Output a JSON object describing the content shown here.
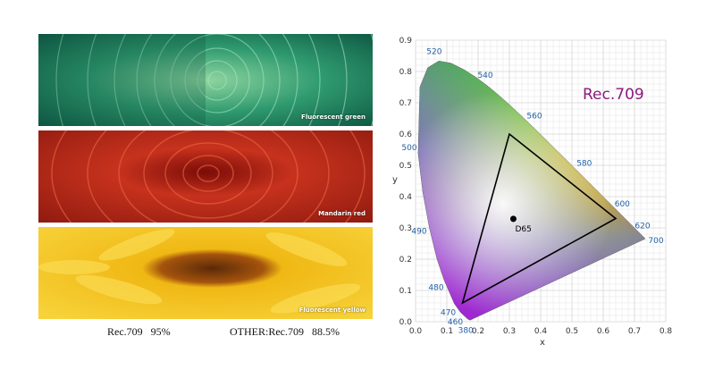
{
  "photos": [
    {
      "label": "Fluorescent green",
      "color": "#1f8a6a"
    },
    {
      "label": "Mandarin red",
      "color": "#c2321e"
    },
    {
      "label": "Fluorescent yellow",
      "color": "#f3c51a"
    }
  ],
  "coverage": {
    "rec709": "Rec.709   95%",
    "other": "OTHER:Rec.709   88.5%"
  },
  "chart_data": {
    "type": "scatter",
    "title": "Rec.709",
    "xlabel": "x",
    "ylabel": "y",
    "xlim": [
      0.0,
      0.8
    ],
    "ylim": [
      0.0,
      0.9
    ],
    "grid": true,
    "x_ticks": [
      "0.0",
      "0.1",
      "0.2",
      "0.3",
      "0.4",
      "0.5",
      "0.6",
      "0.7",
      "0.8"
    ],
    "y_ticks": [
      "0.0",
      "0.1",
      "0.2",
      "0.3",
      "0.4",
      "0.5",
      "0.6",
      "0.7",
      "0.8",
      "0.9"
    ],
    "spectral_locus": [
      [
        0.1741,
        0.005
      ],
      [
        0.1666,
        0.0089
      ],
      [
        0.144,
        0.0297
      ],
      [
        0.1241,
        0.0578
      ],
      [
        0.0913,
        0.1327
      ],
      [
        0.0687,
        0.2007
      ],
      [
        0.0454,
        0.295
      ],
      [
        0.0235,
        0.4127
      ],
      [
        0.0082,
        0.5384
      ],
      [
        0.0139,
        0.7502
      ],
      [
        0.0389,
        0.812
      ],
      [
        0.0743,
        0.8338
      ],
      [
        0.1142,
        0.8262
      ],
      [
        0.1547,
        0.8059
      ],
      [
        0.1929,
        0.7816
      ],
      [
        0.2296,
        0.7543
      ],
      [
        0.2658,
        0.7243
      ],
      [
        0.3016,
        0.6923
      ],
      [
        0.3373,
        0.6589
      ],
      [
        0.3731,
        0.6245
      ],
      [
        0.4087,
        0.5896
      ],
      [
        0.4441,
        0.5547
      ],
      [
        0.4788,
        0.5202
      ],
      [
        0.5125,
        0.4866
      ],
      [
        0.5448,
        0.4544
      ],
      [
        0.5752,
        0.4242
      ],
      [
        0.6029,
        0.3965
      ],
      [
        0.627,
        0.3725
      ],
      [
        0.6482,
        0.3514
      ],
      [
        0.6658,
        0.334
      ],
      [
        0.6915,
        0.3083
      ],
      [
        0.7347,
        0.2653
      ]
    ],
    "wavelength_labels": [
      {
        "label": "380",
        "x": 0.1741,
        "y": 0.005
      },
      {
        "label": "460",
        "x": 0.144,
        "y": 0.0297
      },
      {
        "label": "470",
        "x": 0.1241,
        "y": 0.0578
      },
      {
        "label": "480",
        "x": 0.0913,
        "y": 0.1327
      },
      {
        "label": "490",
        "x": 0.0454,
        "y": 0.295
      },
      {
        "label": "500",
        "x": 0.0082,
        "y": 0.5384
      },
      {
        "label": "520",
        "x": 0.0743,
        "y": 0.8338
      },
      {
        "label": "540",
        "x": 0.2296,
        "y": 0.7543
      },
      {
        "label": "560",
        "x": 0.3731,
        "y": 0.6245
      },
      {
        "label": "580",
        "x": 0.5125,
        "y": 0.4866
      },
      {
        "label": "600",
        "x": 0.627,
        "y": 0.3725
      },
      {
        "label": "620",
        "x": 0.6915,
        "y": 0.3083
      },
      {
        "label": "700",
        "x": 0.7347,
        "y": 0.2653
      }
    ],
    "gamut_triangle": [
      [
        0.64,
        0.33
      ],
      [
        0.3,
        0.6
      ],
      [
        0.15,
        0.06
      ]
    ],
    "white_point": {
      "label": "D65",
      "x": 0.3127,
      "y": 0.329
    },
    "colors": {
      "title": "#8b1a7e",
      "wavelength": "#1f5fa6",
      "grid": "#d5d5d5",
      "triangle": "#000000"
    }
  }
}
